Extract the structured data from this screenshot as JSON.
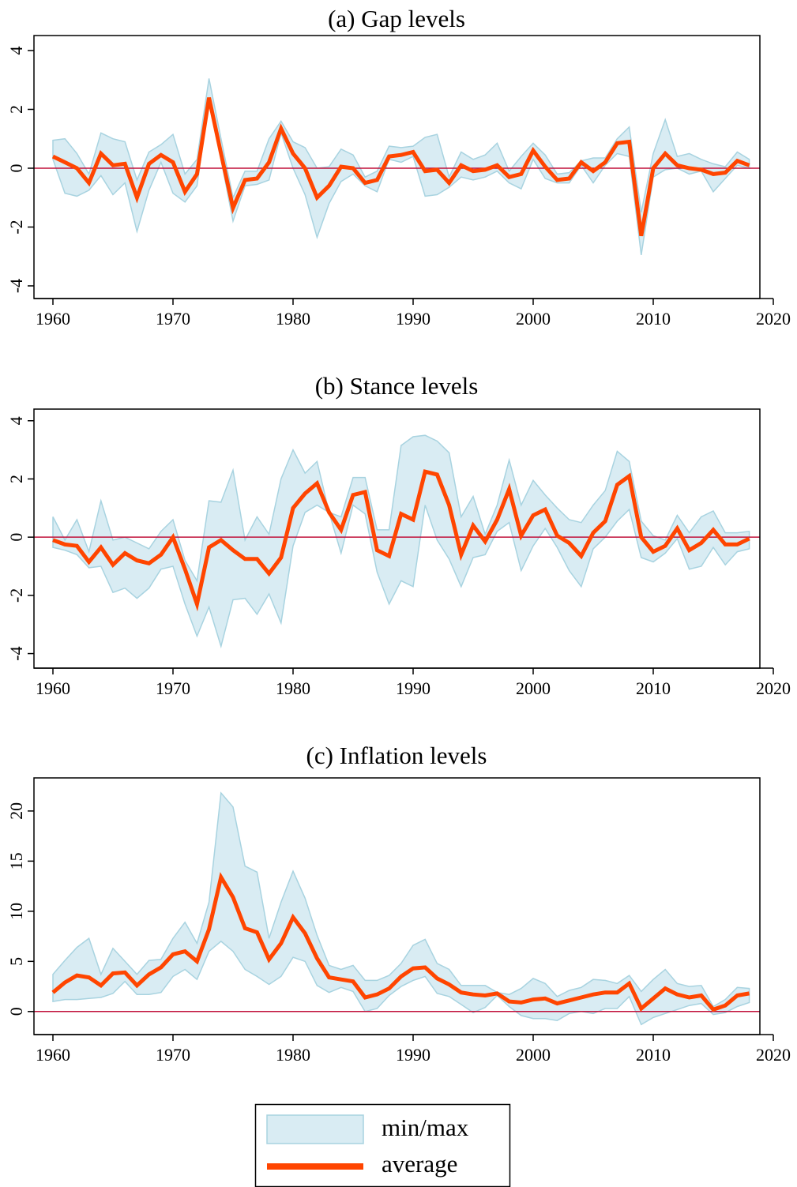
{
  "legend": [
    {
      "label": "min/max",
      "color": "#d9ecf3",
      "edge": "#a8d3e0"
    },
    {
      "label": "average",
      "color": "#ff4500"
    }
  ],
  "reference_color": "#c0103a",
  "chart_data": [
    {
      "type": "band-line",
      "title": "(a) Gap levels",
      "x": [
        1960,
        1961,
        1962,
        1963,
        1964,
        1965,
        1966,
        1967,
        1968,
        1969,
        1970,
        1971,
        1972,
        1973,
        1974,
        1975,
        1976,
        1977,
        1978,
        1979,
        1980,
        1981,
        1982,
        1983,
        1984,
        1985,
        1986,
        1987,
        1988,
        1989,
        1990,
        1991,
        1992,
        1993,
        1994,
        1995,
        1996,
        1997,
        1998,
        1999,
        2000,
        2001,
        2002,
        2003,
        2004,
        2005,
        2006,
        2007,
        2008,
        2009,
        2010,
        2011,
        2012,
        2013,
        2014,
        2015,
        2016,
        2017,
        2018
      ],
      "band": {
        "high": [
          0.95,
          1.0,
          0.5,
          -0.2,
          1.2,
          1.0,
          0.9,
          -0.4,
          0.55,
          0.8,
          1.15,
          -0.2,
          0.3,
          3.05,
          1.0,
          -1.0,
          -0.1,
          -0.1,
          1.0,
          1.6,
          0.9,
          0.7,
          0.0,
          0.05,
          0.65,
          0.45,
          -0.3,
          -0.1,
          0.75,
          0.7,
          0.75,
          1.05,
          1.15,
          -0.3,
          0.55,
          0.3,
          0.45,
          0.85,
          -0.1,
          0.4,
          0.85,
          0.45,
          -0.2,
          -0.15,
          0.25,
          0.35,
          0.35,
          1.0,
          1.4,
          -1.5,
          0.5,
          1.65,
          0.4,
          0.5,
          0.3,
          0.15,
          0.05,
          0.55,
          0.3
        ],
        "low": [
          0.3,
          -0.85,
          -0.95,
          -0.75,
          -0.25,
          -0.9,
          -0.5,
          -2.15,
          -0.75,
          0.2,
          -0.85,
          -1.15,
          -0.6,
          2.3,
          0.3,
          -1.8,
          -0.6,
          -0.55,
          -0.4,
          1.2,
          0.0,
          -0.9,
          -2.35,
          -1.2,
          -0.45,
          -0.2,
          -0.6,
          -0.8,
          0.3,
          0.2,
          0.4,
          -0.95,
          -0.9,
          -0.65,
          -0.3,
          -0.4,
          -0.3,
          -0.1,
          -0.5,
          -0.7,
          0.3,
          -0.35,
          -0.5,
          -0.5,
          0.1,
          -0.5,
          0.1,
          0.5,
          0.4,
          -2.95,
          -0.3,
          -0.05,
          0.0,
          -0.2,
          -0.1,
          -0.8,
          -0.35,
          0.1,
          0.0
        ]
      },
      "values": [
        0.4,
        0.2,
        0.0,
        -0.5,
        0.5,
        0.1,
        0.15,
        -1.0,
        0.15,
        0.45,
        0.2,
        -0.8,
        -0.2,
        2.4,
        0.5,
        -1.35,
        -0.4,
        -0.35,
        0.2,
        1.35,
        0.5,
        0.0,
        -1.0,
        -0.6,
        0.05,
        0.0,
        -0.5,
        -0.4,
        0.4,
        0.45,
        0.55,
        -0.1,
        -0.05,
        -0.5,
        0.1,
        -0.1,
        -0.05,
        0.1,
        -0.3,
        -0.2,
        0.6,
        0.05,
        -0.4,
        -0.35,
        0.2,
        -0.1,
        0.2,
        0.85,
        0.9,
        -2.3,
        0.0,
        0.5,
        0.1,
        0.0,
        -0.05,
        -0.2,
        -0.15,
        0.25,
        0.1
      ],
      "reference": 0,
      "xlim": [
        1960,
        2020
      ],
      "xticks": [
        1960,
        1970,
        1980,
        1990,
        2000,
        2010,
        2020
      ],
      "ylim": [
        -4.43,
        4.51
      ],
      "yticks": [
        -4,
        -2,
        0,
        2,
        4
      ]
    },
    {
      "type": "band-line",
      "title": "(b) Stance levels",
      "x": [
        1960,
        1961,
        1962,
        1963,
        1964,
        1965,
        1966,
        1967,
        1968,
        1969,
        1970,
        1971,
        1972,
        1973,
        1974,
        1975,
        1976,
        1977,
        1978,
        1979,
        1980,
        1981,
        1982,
        1983,
        1984,
        1985,
        1986,
        1987,
        1988,
        1989,
        1990,
        1991,
        1992,
        1993,
        1994,
        1995,
        1996,
        1997,
        1998,
        1999,
        2000,
        2001,
        2002,
        2003,
        2004,
        2005,
        2006,
        2007,
        2008,
        2009,
        2010,
        2011,
        2012,
        2013,
        2014,
        2015,
        2016,
        2017,
        2018
      ],
      "band": {
        "high": [
          0.7,
          -0.1,
          0.6,
          -0.5,
          1.25,
          -0.1,
          0.0,
          -0.2,
          -0.4,
          0.2,
          0.6,
          -0.8,
          -1.5,
          1.25,
          1.2,
          2.3,
          -0.1,
          0.7,
          0.1,
          2.0,
          3.0,
          2.2,
          2.6,
          0.85,
          0.7,
          2.05,
          2.05,
          0.25,
          0.25,
          3.15,
          3.45,
          3.5,
          3.3,
          2.9,
          0.7,
          1.4,
          0.1,
          1.1,
          2.65,
          1.1,
          1.95,
          1.45,
          1.0,
          0.6,
          0.5,
          1.1,
          1.6,
          2.95,
          2.6,
          0.55,
          0.05,
          -0.1,
          0.75,
          0.15,
          0.7,
          0.9,
          0.15,
          0.15,
          0.2
        ],
        "low": [
          -0.35,
          -0.45,
          -0.6,
          -1.05,
          -1.0,
          -1.9,
          -1.75,
          -2.1,
          -1.75,
          -1.1,
          -1.0,
          -2.3,
          -3.4,
          -2.4,
          -3.75,
          -2.15,
          -2.1,
          -2.65,
          -1.95,
          -2.95,
          -0.3,
          0.85,
          1.1,
          0.85,
          -0.55,
          1.1,
          0.8,
          -1.2,
          -2.3,
          -1.5,
          -1.7,
          1.1,
          -0.1,
          -0.75,
          -1.7,
          -0.7,
          -0.6,
          0.2,
          0.5,
          -1.15,
          -0.3,
          0.3,
          -0.35,
          -1.15,
          -1.7,
          -0.4,
          0.0,
          0.55,
          0.95,
          -0.7,
          -0.85,
          -0.55,
          -0.05,
          -1.1,
          -1.0,
          -0.35,
          -0.95,
          -0.5,
          -0.4
        ]
      },
      "values": [
        -0.1,
        -0.25,
        -0.3,
        -0.85,
        -0.35,
        -0.95,
        -0.55,
        -0.8,
        -0.9,
        -0.6,
        0.0,
        -1.1,
        -2.3,
        -0.35,
        -0.1,
        -0.45,
        -0.75,
        -0.75,
        -1.25,
        -0.7,
        1.0,
        1.5,
        1.85,
        0.85,
        0.25,
        1.45,
        1.55,
        -0.45,
        -0.65,
        0.8,
        0.6,
        2.25,
        2.15,
        1.1,
        -0.6,
        0.4,
        -0.15,
        0.6,
        1.65,
        0.05,
        0.75,
        0.95,
        0.05,
        -0.2,
        -0.65,
        0.15,
        0.55,
        1.8,
        2.1,
        0.0,
        -0.5,
        -0.3,
        0.3,
        -0.45,
        -0.2,
        0.25,
        -0.25,
        -0.25,
        -0.05
      ],
      "reference": 0,
      "xlim": [
        1960,
        2020
      ],
      "xticks": [
        1960,
        1970,
        1980,
        1990,
        2000,
        2010,
        2020
      ],
      "ylim": [
        -4.5,
        4.4
      ],
      "yticks": [
        -4,
        -2,
        0,
        2,
        4
      ]
    },
    {
      "type": "band-line",
      "title": "(c) Inflation levels",
      "x": [
        1960,
        1961,
        1962,
        1963,
        1964,
        1965,
        1966,
        1967,
        1968,
        1969,
        1970,
        1971,
        1972,
        1973,
        1974,
        1975,
        1976,
        1977,
        1978,
        1979,
        1980,
        1981,
        1982,
        1983,
        1984,
        1985,
        1986,
        1987,
        1988,
        1989,
        1990,
        1991,
        1992,
        1993,
        1994,
        1995,
        1996,
        1997,
        1998,
        1999,
        2000,
        2001,
        2002,
        2003,
        2004,
        2005,
        2006,
        2007,
        2008,
        2009,
        2010,
        2011,
        2012,
        2013,
        2014,
        2015,
        2016,
        2017,
        2018
      ],
      "band": {
        "high": [
          3.7,
          5.1,
          6.4,
          7.3,
          3.7,
          6.3,
          5.0,
          3.7,
          5.1,
          5.2,
          7.3,
          8.9,
          6.8,
          10.9,
          21.8,
          20.4,
          14.5,
          13.9,
          7.3,
          10.9,
          14.0,
          11.3,
          7.6,
          4.6,
          4.2,
          4.6,
          3.1,
          3.1,
          3.6,
          4.8,
          6.6,
          7.2,
          4.8,
          4.2,
          2.6,
          2.6,
          2.6,
          1.9,
          1.7,
          2.3,
          3.3,
          2.8,
          1.5,
          2.1,
          2.4,
          3.2,
          3.1,
          2.8,
          3.6,
          2.0,
          3.2,
          4.2,
          2.8,
          2.5,
          2.6,
          0.5,
          1.2,
          2.4,
          2.3
        ],
        "low": [
          1.0,
          1.2,
          1.2,
          1.3,
          1.4,
          1.8,
          3.0,
          1.7,
          1.7,
          1.9,
          3.5,
          4.2,
          3.2,
          6.0,
          7.0,
          6.0,
          4.2,
          3.5,
          2.7,
          3.5,
          5.4,
          5.0,
          2.6,
          1.9,
          2.4,
          2.0,
          0.0,
          0.3,
          1.6,
          2.5,
          3.1,
          3.5,
          1.8,
          1.5,
          0.7,
          -0.1,
          0.4,
          1.6,
          0.5,
          -0.4,
          -0.7,
          -0.7,
          -0.9,
          -0.2,
          0.0,
          -0.2,
          0.3,
          0.3,
          1.5,
          -1.3,
          -0.6,
          -0.2,
          0.2,
          0.6,
          0.8,
          -0.3,
          -0.1,
          0.5,
          0.9
        ]
      },
      "values": [
        1.9,
        2.9,
        3.6,
        3.4,
        2.6,
        3.8,
        3.9,
        2.6,
        3.7,
        4.4,
        5.7,
        6.0,
        5.0,
        8.2,
        13.4,
        11.4,
        8.3,
        7.9,
        5.2,
        6.8,
        9.4,
        7.8,
        5.3,
        3.4,
        3.2,
        3.0,
        1.4,
        1.7,
        2.3,
        3.5,
        4.3,
        4.4,
        3.3,
        2.7,
        1.9,
        1.7,
        1.6,
        1.8,
        1.0,
        0.9,
        1.2,
        1.3,
        0.8,
        1.1,
        1.4,
        1.7,
        1.9,
        1.9,
        2.8,
        0.3,
        1.3,
        2.3,
        1.7,
        1.4,
        1.6,
        0.2,
        0.6,
        1.6,
        1.8
      ],
      "reference": 0,
      "xlim": [
        1960,
        2020
      ],
      "xticks": [
        1960,
        1970,
        1980,
        1990,
        2000,
        2010,
        2020
      ],
      "ylim": [
        -2.3,
        23.3
      ],
      "yticks": [
        0,
        5,
        10,
        15,
        20
      ]
    }
  ]
}
